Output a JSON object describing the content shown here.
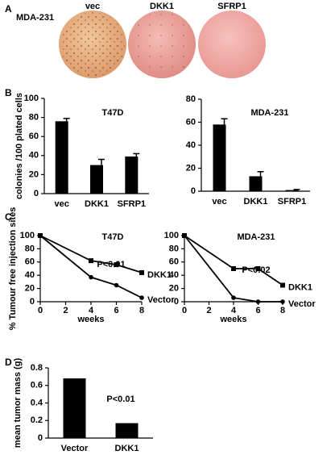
{
  "panel_labels": [
    "A",
    "B",
    "C",
    "D"
  ],
  "panel_a": {
    "cell_line": "MDA-231",
    "conditions": [
      "vec",
      "DKK1",
      "SFRP1"
    ]
  },
  "chart_data": [
    {
      "type": "bar",
      "title": "T47D",
      "y_label": "colonies /100 plated cells",
      "categories": [
        "vec",
        "DKK1",
        "SFRP1"
      ],
      "values": [
        76,
        30,
        39
      ],
      "error": [
        3,
        6,
        3
      ],
      "color": "#000000",
      "ylim": [
        0,
        100
      ],
      "yticks": [
        0,
        20,
        40,
        60,
        80,
        100
      ]
    },
    {
      "type": "bar",
      "title": "MDA-231",
      "categories": [
        "vec",
        "DKK1",
        "SFRP1"
      ],
      "values": [
        58,
        13,
        1
      ],
      "error": [
        5,
        4,
        0.5
      ],
      "color": "#000000",
      "ylim": [
        0,
        80
      ],
      "yticks": [
        0,
        20,
        40,
        60,
        80
      ]
    },
    {
      "type": "line",
      "title": "T47D",
      "annotation": "P<0.01",
      "y_label": "% Tumour free injection sites",
      "x_label": "weeks",
      "x": [
        0,
        4,
        6,
        8
      ],
      "series": [
        {
          "name": "DKK1",
          "color": "#000000",
          "marker": "square",
          "values": [
            100,
            62,
            56,
            44
          ]
        },
        {
          "name": "Vector",
          "color": "#000000",
          "marker": "circle",
          "values": [
            100,
            37,
            25,
            6
          ]
        }
      ],
      "xlim": [
        0,
        8
      ],
      "xticks": [
        0,
        2,
        4,
        6,
        8
      ],
      "ylim": [
        0,
        100
      ],
      "yticks": [
        0,
        20,
        40,
        60,
        80,
        100
      ]
    },
    {
      "type": "line",
      "title": "MDA-231",
      "annotation": "P<0.02",
      "x_label": "weeks",
      "x": [
        0,
        4,
        6,
        8
      ],
      "series": [
        {
          "name": "DKK1",
          "color": "#000000",
          "marker": "square",
          "values": [
            100,
            50,
            50,
            25
          ]
        },
        {
          "name": "Vector",
          "color": "#000000",
          "marker": "circle",
          "values": [
            100,
            6,
            0,
            0
          ]
        }
      ],
      "xlim": [
        0,
        8
      ],
      "xticks": [
        0,
        2,
        4,
        6,
        8
      ],
      "ylim": [
        0,
        100
      ],
      "yticks": [
        0,
        20,
        40,
        60,
        80,
        100
      ]
    },
    {
      "type": "bar",
      "annotation": "P<0.01",
      "y_label": "mean tumor mass (g)",
      "categories": [
        "Vector",
        "DKK1"
      ],
      "values": [
        0.68,
        0.17
      ],
      "color": "#000000",
      "ylim": [
        0,
        0.8
      ],
      "yticks": [
        0,
        0.2,
        0.4,
        0.6,
        0.8
      ]
    }
  ]
}
